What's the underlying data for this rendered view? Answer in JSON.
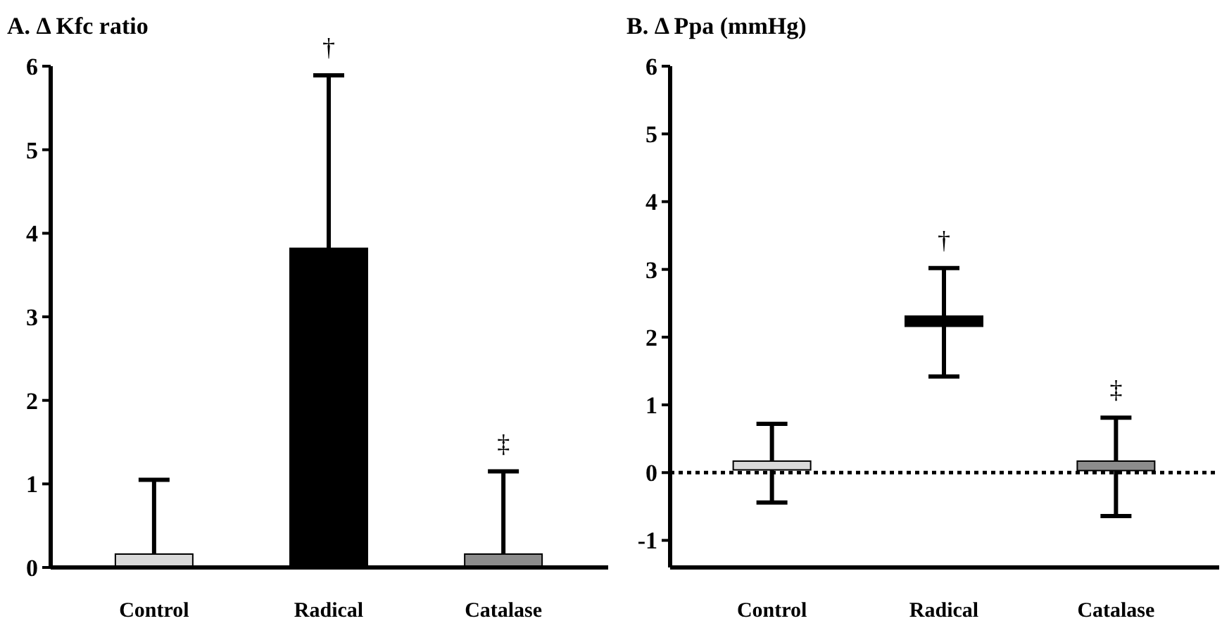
{
  "chart_data": [
    {
      "type": "bar",
      "title": "A. Δ Kfc ratio",
      "categories": [
        "Control",
        "Radical",
        "Catalase"
      ],
      "values": [
        0.16,
        3.82,
        0.16
      ],
      "colors": [
        "#d9d9d9",
        "#000000",
        "#8c8c8c"
      ],
      "errors": [
        [
          0.16,
          1.05
        ],
        [
          3.82,
          5.89
        ],
        [
          0.16,
          1.15
        ]
      ],
      "ylim": [
        0,
        6
      ],
      "yticks": [
        0,
        1,
        2,
        3,
        4,
        5,
        6
      ],
      "annotations": [
        "†",
        "‡"
      ]
    },
    {
      "type": "bar",
      "title": "B. Δ Ppa (mmHg)",
      "categories": [
        "Control",
        "Radical",
        "Catalase"
      ],
      "base": [
        0.04,
        2.16,
        0.03
      ],
      "values": [
        0.13,
        0.15,
        0.14
      ],
      "colors": [
        "#d9d9d9",
        "#000000",
        "#8c8c8c"
      ],
      "errors": [
        [
          -0.44,
          0.72
        ],
        [
          1.42,
          3.02
        ],
        [
          -0.64,
          0.81
        ]
      ],
      "ylim": [
        -1.4,
        6
      ],
      "yticks": [
        -1,
        0,
        1,
        2,
        3,
        4,
        5,
        6
      ],
      "ref_lines": [
        {
          "axis": "y",
          "value": 0,
          "line_style": "dotted",
          "color": "#000000"
        }
      ],
      "annotations": [
        "†",
        "‡"
      ]
    }
  ]
}
